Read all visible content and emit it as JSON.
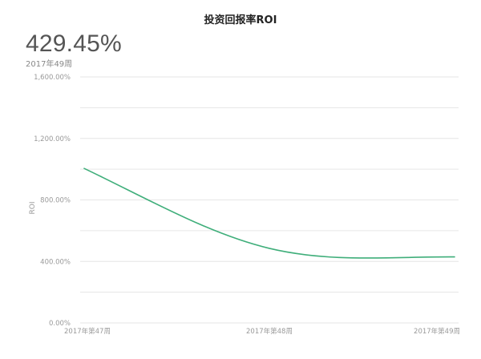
{
  "header": {
    "title": "投资回报率ROI",
    "kpi_value": "429.45%",
    "kpi_period": "2017年49周"
  },
  "colors": {
    "line": "#3fae7a",
    "grid": "#e6e6e6",
    "text": "#999999"
  },
  "chart_data": {
    "type": "line",
    "title": "投资回报率ROI",
    "xlabel": "",
    "ylabel": "ROI",
    "categories": [
      "2017年第47周",
      "2017年第48周",
      "2017年第49周"
    ],
    "y_tick_values": [
      0,
      200,
      400,
      600,
      800,
      1000,
      1200,
      1400,
      1600
    ],
    "y_tick_labels": [
      "0.00%",
      "",
      "400.00%",
      "",
      "800.00%",
      "",
      "1,200.00%",
      "",
      "1,600.00%"
    ],
    "ylim": [
      0,
      1600
    ],
    "grid": true,
    "series": [
      {
        "values": [
          1005,
          485,
          429.45
        ]
      }
    ]
  }
}
